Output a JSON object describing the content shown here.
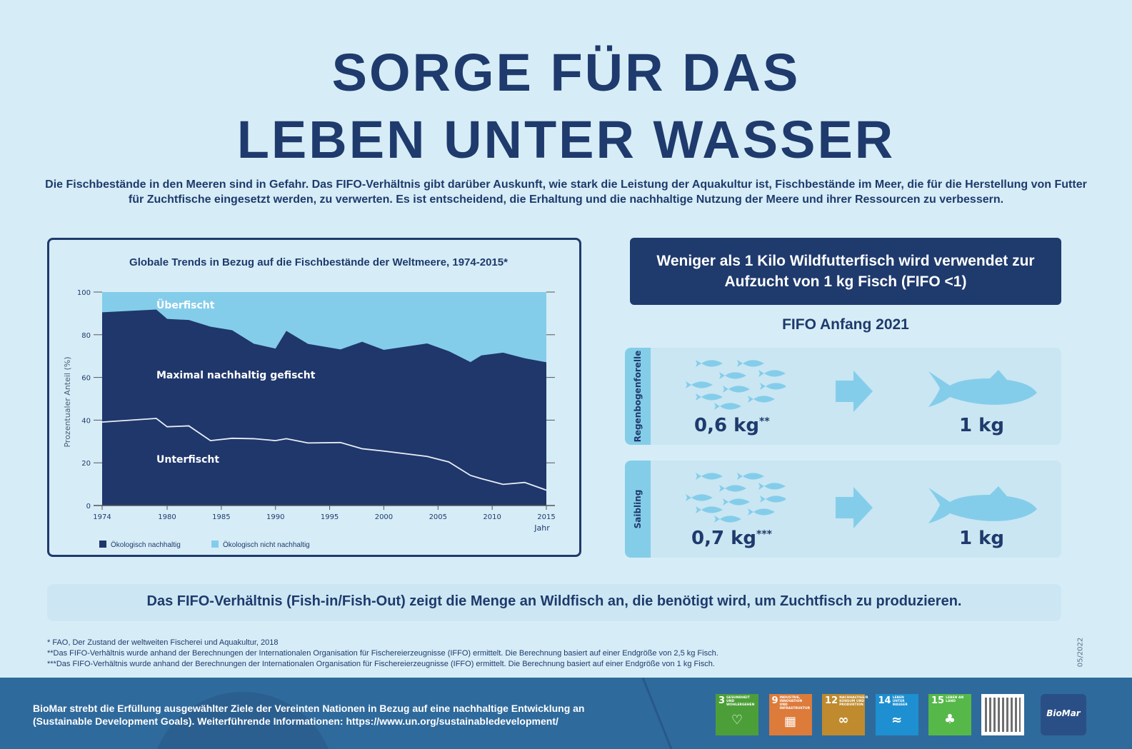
{
  "title": {
    "line1": "SORGE FÜR DAS",
    "line2": "LEBEN UNTER WASSER"
  },
  "intro": "Die Fischbestände in den Meeren sind in Gefahr. Das FIFO-Verhältnis gibt darüber Auskunft, wie stark die Leistung der Aquakultur ist, Fischbestände im Meer, die für die Herstellung von Futter für Zuchtfische eingesetzt werden, zu verwerten. Es ist entscheidend, die Erhaltung und die nachhaltige Nutzung der Meere und ihrer Ressourcen zu verbessern.",
  "chart_data": {
    "type": "area",
    "title": "Globale Trends in Bezug auf die Fischbestände der Weltmeere, 1974-2015*",
    "xlabel": "Jahr",
    "ylabel": "Prozentualer Anteil (%)",
    "xlim": [
      1974,
      2015
    ],
    "ylim": [
      0,
      100
    ],
    "xticks": [
      "1974",
      "1980",
      "1985",
      "1990",
      "1995",
      "2000",
      "2005",
      "2010",
      "2015"
    ],
    "yticks": [
      "0",
      "20",
      "40",
      "60",
      "80",
      "100"
    ],
    "x": [
      1974,
      1979,
      1980,
      1982,
      1984,
      1986,
      1988,
      1990,
      1991,
      1993,
      1996,
      1998,
      2000,
      2004,
      2006,
      2008,
      2009,
      2011,
      2013,
      2015
    ],
    "sustainable_total": [
      90.5,
      91.8,
      87.4,
      86.9,
      83.8,
      82.1,
      75.8,
      73.5,
      81.8,
      75.7,
      73.1,
      76.7,
      72.9,
      75.9,
      72.3,
      67.2,
      70.3,
      71.6,
      69.0,
      67.1
    ],
    "underfished": [
      39.1,
      40.8,
      36.9,
      37.3,
      30.4,
      31.5,
      31.3,
      30.4,
      31.3,
      29.3,
      29.5,
      26.6,
      25.5,
      23.0,
      20.4,
      14.1,
      12.6,
      9.9,
      10.8,
      7.2
    ],
    "region_labels": {
      "over": "Überfischt",
      "max": "Maximal nachhaltig gefischt",
      "under": "Unterfischt"
    },
    "legend": [
      {
        "name": "Ökologisch nachhaltig",
        "color": "#1f376b"
      },
      {
        "name": "Ökologisch nicht nachhaltig",
        "color": "#84cdea"
      }
    ],
    "legend_position": "bottom-left",
    "grid": false
  },
  "fifo": {
    "banner": "Weniger als 1 Kilo Wildfutterfisch wird verwendet zur Aufzucht von 1 kg Fisch (FIFO <1)",
    "heading": "FIFO Anfang 2021",
    "rows": [
      {
        "species": "Regenbogenforelle",
        "input": "0,6 kg",
        "input_mark": "**",
        "output": "1 kg"
      },
      {
        "species": "Saibling",
        "input": "0,7 kg",
        "input_mark": "***",
        "output": "1 kg"
      }
    ]
  },
  "definition": "Das FIFO-Verhältnis (Fish-in/Fish-Out) zeigt die Menge an Wildfisch an, die benötigt wird, um Zuchtfisch zu produzieren.",
  "notes": [
    "* FAO, Der Zustand der weltweiten Fischerei und Aquakultur, 2018",
    "**Das FIFO-Verhältnis wurde anhand der Berechnungen der Internationalen Organisation für Fischereierzeugnisse (IFFO) ermittelt. Die Berechnung basiert auf einer Endgröße von 2,5 kg Fisch.",
    "***Das FIFO-Verhältnis wurde anhand der Berechnungen der Internationalen Organisation für Fischereierzeugnisse (IFFO) ermittelt. Die Berechnung basiert auf einer Endgröße von 1 kg Fisch."
  ],
  "date": "05/2022",
  "footer": {
    "line1": "BioMar strebt die Erfüllung ausgewählter Ziele der Vereinten Nationen in Bezug auf eine nachhaltige Entwicklung an",
    "line2": "(Sustainable Development Goals). Weiterführende Informationen: https://www.un.org/sustainabledevelopment/",
    "sdgs": [
      {
        "num": "3",
        "label": "GESUNDHEIT UND WOHLERGEHEN",
        "color": "#4c9f38"
      },
      {
        "num": "9",
        "label": "INDUSTRIE, INNOVATION UND INFRASTRUKTUR",
        "color": "#dd7b3a"
      },
      {
        "num": "12",
        "label": "NACHHALTIGE/R KONSUM UND PRODUKTION",
        "color": "#bf8b2e"
      },
      {
        "num": "14",
        "label": "LEBEN UNTER WASSER",
        "color": "#1e8fd0"
      },
      {
        "num": "15",
        "label": "LEBEN AN LAND",
        "color": "#56b849"
      }
    ],
    "logo": "BioMar"
  }
}
